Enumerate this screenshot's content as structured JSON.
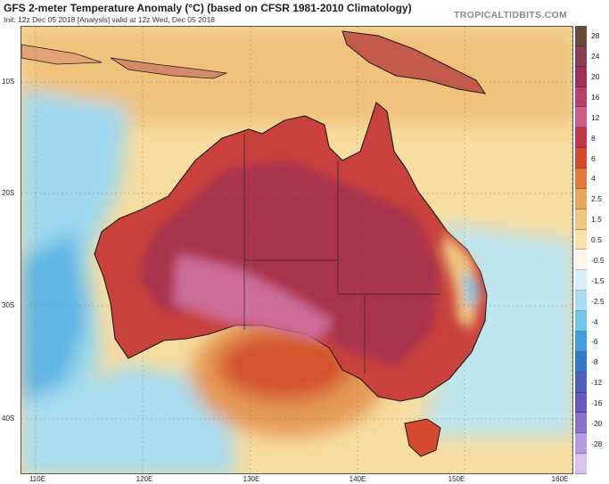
{
  "header": {
    "title": "GFS 2-meter Temperature Anomaly (°C) (based on CFSR 1981-2010 Climatology)",
    "subtitle": "Init: 12z Dec 05 2018   [Analysis]   valid at 12z Wed, Dec 05 2018",
    "brand": "TROPICALTIDBITS.COM"
  },
  "map": {
    "lat_labels": [
      "10S",
      "20S",
      "30S",
      "40S"
    ],
    "lon_labels": [
      "110E",
      "120E",
      "130E",
      "140E",
      "150E",
      "160E"
    ]
  },
  "colorbar": {
    "labels": [
      "28",
      "24",
      "20",
      "16",
      "12",
      "8",
      "6",
      "4",
      "2.5",
      "1.5",
      "0.5",
      "-0.5",
      "-1.5",
      "-2.5",
      "-4",
      "-6",
      "-8",
      "-12",
      "-16",
      "-20",
      "-28"
    ],
    "colors": [
      "#6b4a3a",
      "#8b3b52",
      "#a02e5f",
      "#b93d6f",
      "#cc5c8a",
      "#c2374a",
      "#d44a2e",
      "#e47a3a",
      "#eba55a",
      "#f2c57d",
      "#f8e2a8",
      "#fdf7ea",
      "#d6f0f5",
      "#a5dff0",
      "#6ec6ea",
      "#3f9ddc",
      "#3578c9",
      "#4e5fc0",
      "#6a58c2",
      "#8a70d0",
      "#b79be0",
      "#d9c2ee"
    ]
  },
  "colors": {
    "ocean_warm": "#f8e2a8",
    "ocean_cool": "#a5dff0",
    "land_hot": "#c2374a",
    "land_extreme": "#cc5c8a"
  }
}
